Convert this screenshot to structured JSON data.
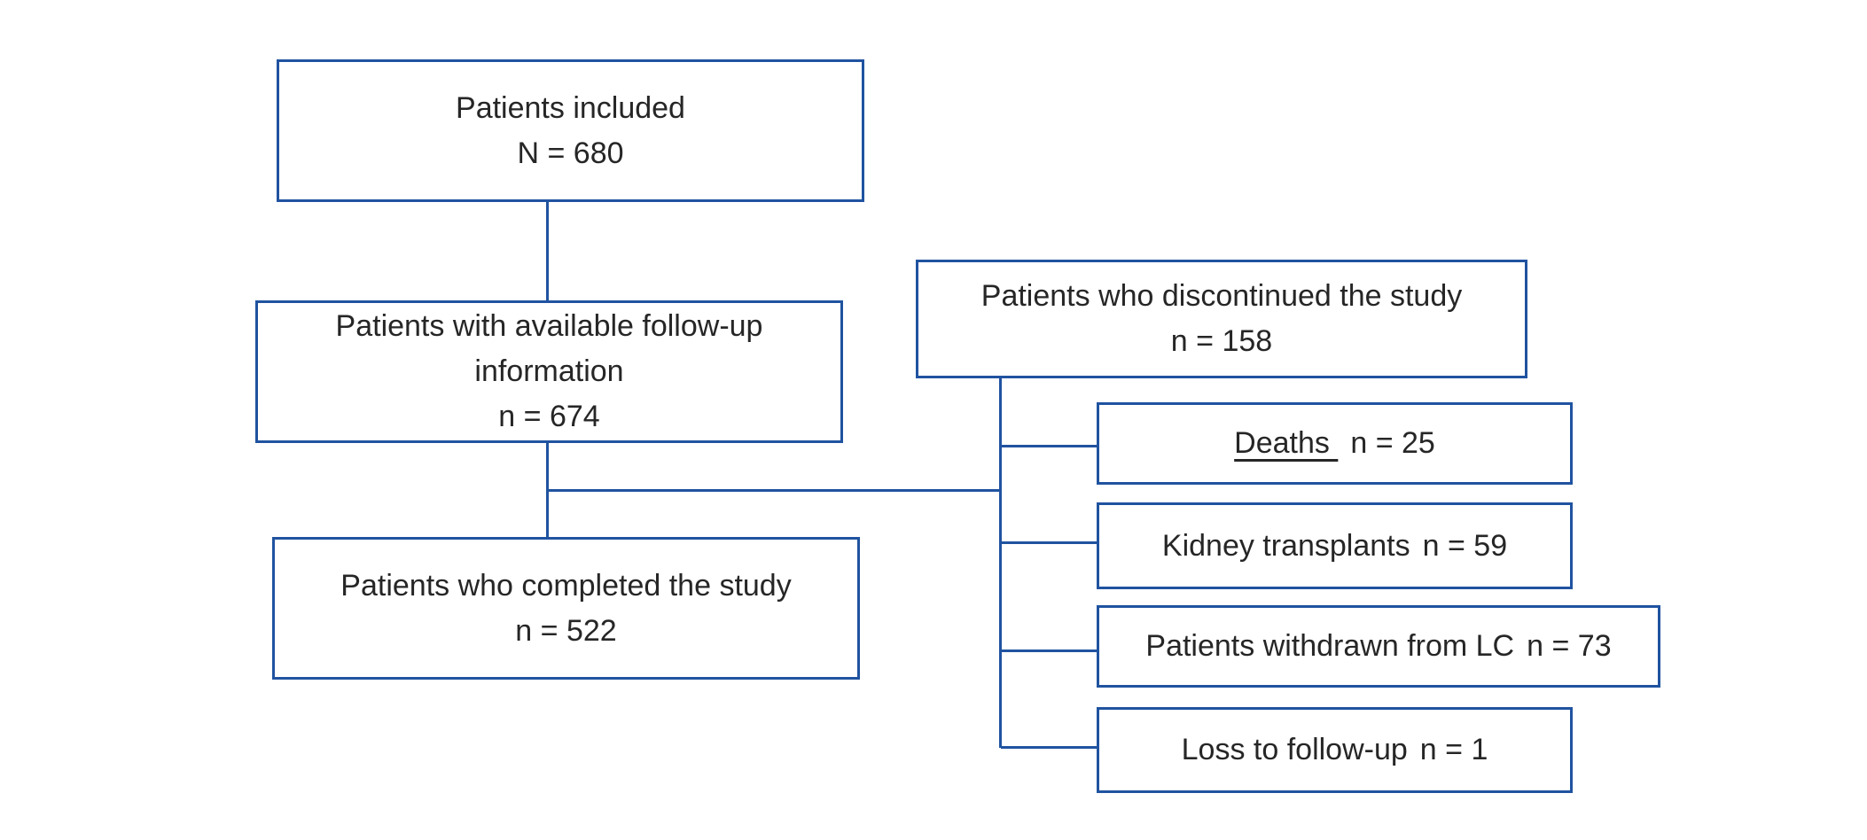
{
  "colors": {
    "border_blue": "#2053a0",
    "text_dark": "#262626",
    "background": "#ffffff"
  },
  "flowchart": {
    "included": {
      "line1": "Patients included",
      "line2": "N = 680"
    },
    "followup": {
      "line1": "Patients with available follow-up",
      "line2": "information",
      "line3": "n = 674"
    },
    "completed": {
      "line1": "Patients who completed the study",
      "line2": "n = 522"
    },
    "discontinued": {
      "line1": "Patients who discontinued the study",
      "line2": "n = 158"
    },
    "deaths": {
      "label": "Deaths ",
      "count": "n = 25"
    },
    "kidney_transplants": {
      "label": "Kidney transplants",
      "count": "n = 59"
    },
    "withdrawn_lc": {
      "label": "Patients withdrawn from LC",
      "count": "n = 73"
    },
    "loss_followup": {
      "label": "Loss to follow-up",
      "count": "n = 1"
    }
  }
}
